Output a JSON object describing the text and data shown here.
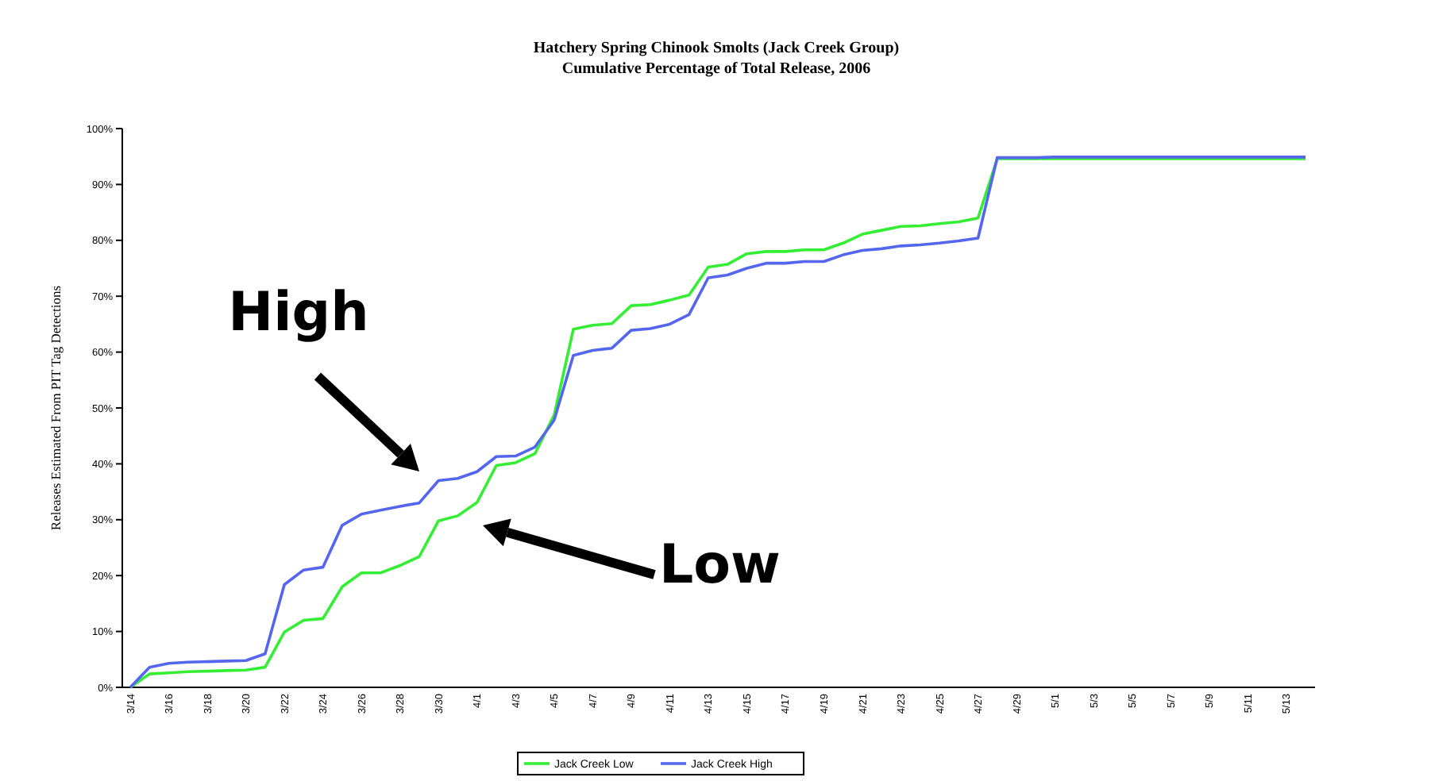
{
  "chart_data": {
    "type": "line",
    "title": "Hatchery Spring Chinook Smolts (Jack Creek Group)",
    "subtitle": "Cumulative Percentage of Total Release, 2006",
    "ylabel": "Releases Estimated From PIT Tag Detections",
    "categories": [
      "3/14",
      null,
      "3/16",
      null,
      "3/18",
      null,
      "3/20",
      null,
      "3/22",
      null,
      "3/24",
      null,
      "3/26",
      null,
      "3/28",
      null,
      "3/30",
      null,
      "4/1",
      null,
      "4/3",
      null,
      "4/5",
      null,
      "4/7",
      null,
      "4/9",
      null,
      "4/11",
      null,
      "4/13",
      null,
      "4/15",
      null,
      "4/17",
      null,
      "4/19",
      null,
      "4/21",
      null,
      "4/23",
      null,
      "4/25",
      null,
      "4/27",
      null,
      "4/29",
      null,
      "5/1",
      null,
      "5/3",
      null,
      "5/5",
      null,
      "5/7",
      null,
      "5/9",
      null,
      "5/11",
      null,
      "5/13",
      null
    ],
    "series": [
      {
        "name": "Jack Creek Low",
        "color": "#33ee33",
        "values": [
          0,
          2.4,
          2.6,
          2.8,
          2.9,
          3.0,
          3.1,
          3.6,
          9.9,
          12.0,
          12.3,
          18.0,
          20.5,
          20.5,
          21.8,
          23.4,
          29.8,
          30.7,
          33.1,
          39.7,
          40.2,
          41.8,
          48.7,
          64.1,
          64.8,
          65.1,
          68.3,
          68.5,
          69.3,
          70.2,
          75.2,
          75.7,
          77.6,
          78.0,
          78.0,
          78.3,
          78.3,
          79.5,
          81.1,
          81.8,
          82.5,
          82.6,
          83.0,
          83.3,
          84.0,
          94.6,
          94.6,
          94.6,
          94.6,
          94.6,
          94.6,
          94.6,
          94.6,
          94.6,
          94.6,
          94.6,
          94.6,
          94.6,
          94.6,
          94.6,
          94.6,
          94.6
        ]
      },
      {
        "name": "Jack Creek High",
        "color": "#5566ee",
        "values": [
          0,
          3.6,
          4.3,
          4.5,
          4.6,
          4.7,
          4.8,
          6.0,
          18.4,
          21.0,
          21.5,
          29.0,
          31.0,
          31.7,
          32.4,
          33.0,
          37.0,
          37.4,
          38.6,
          41.3,
          41.4,
          43.0,
          47.8,
          59.4,
          60.3,
          60.7,
          63.9,
          64.2,
          65.0,
          66.7,
          73.3,
          73.8,
          75.0,
          75.9,
          75.9,
          76.2,
          76.2,
          77.4,
          78.2,
          78.5,
          79.0,
          79.2,
          79.5,
          79.9,
          80.4,
          94.8,
          94.8,
          94.8,
          94.9,
          94.9,
          94.9,
          94.9,
          94.9,
          94.9,
          94.9,
          94.9,
          94.9,
          94.9,
          94.9,
          94.9,
          94.9,
          94.9
        ]
      }
    ],
    "ylim": [
      0,
      100
    ],
    "yticks": [
      {
        "value": 0,
        "label": "0%"
      },
      {
        "value": 10,
        "label": "10%"
      },
      {
        "value": 20,
        "label": "20%"
      },
      {
        "value": 30,
        "label": "30%"
      },
      {
        "value": 40,
        "label": "40%"
      },
      {
        "value": 50,
        "label": "50%"
      },
      {
        "value": 60,
        "label": "60%"
      },
      {
        "value": 70,
        "label": "70%"
      },
      {
        "value": 80,
        "label": "80%"
      },
      {
        "value": 90,
        "label": "90%"
      },
      {
        "value": 100,
        "label": "100%"
      }
    ],
    "grid": false,
    "legend": "bottom",
    "marker": "none",
    "line_style": "solid",
    "annotations": [
      "High",
      "Low"
    ]
  }
}
